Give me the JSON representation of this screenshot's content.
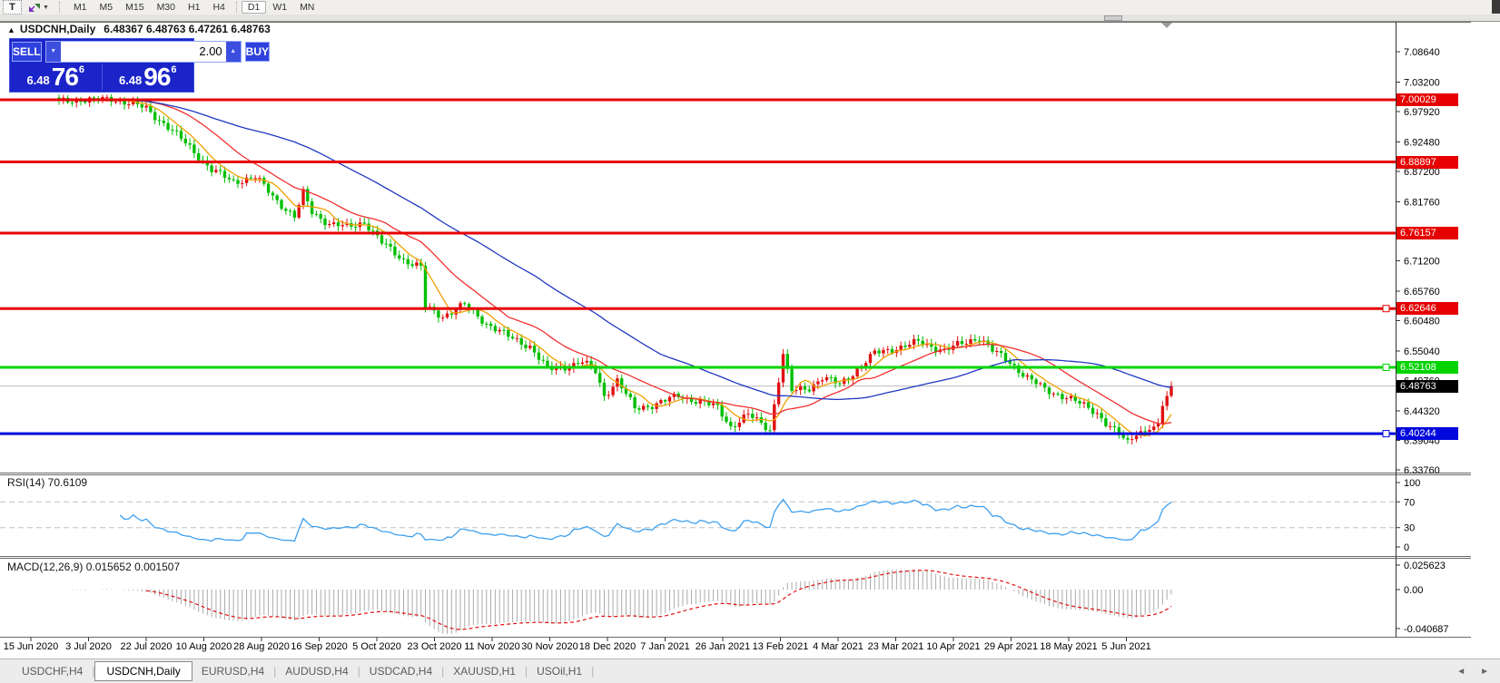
{
  "icons": {
    "collapse": "▲",
    "caret_down": "▼",
    "spin_up": "▲",
    "spin_down": "▼",
    "scroll_left": "◄",
    "scroll_right": "►"
  },
  "toolbar": {
    "text_tool_label": "T",
    "timeframes": [
      "M1",
      "M5",
      "M15",
      "M30",
      "H1",
      "H4",
      "D1",
      "W1",
      "MN"
    ],
    "active_timeframe": "D1"
  },
  "chart_header": {
    "title": "USDCNH,Daily",
    "ohlc": "6.48367 6.48763 6.47261 6.48763"
  },
  "trade_panel": {
    "sell_label": "SELL",
    "buy_label": "BUY",
    "volume": "2.00",
    "sell_price_small": "6.48",
    "sell_price_big": "76",
    "sell_price_sup": "6",
    "buy_price_small": "6.48",
    "buy_price_big": "96",
    "buy_price_sup": "6"
  },
  "indicators": {
    "rsi_label": "RSI(14) 70.6109",
    "macd_label": "MACD(12,26,9) 0.015652 0.001507"
  },
  "tabs": {
    "items": [
      {
        "label": "USDCHF,H4",
        "active": false
      },
      {
        "label": "USDCNH,Daily",
        "active": true
      },
      {
        "label": "EURUSD,H4",
        "active": false
      },
      {
        "label": "AUDUSD,H4",
        "active": false
      },
      {
        "label": "USDCAD,H4",
        "active": false
      },
      {
        "label": "XAUUSD,H1",
        "active": false
      },
      {
        "label": "USOil,H1",
        "active": false
      }
    ]
  },
  "chart_data": {
    "type": "candlestick",
    "symbol": "USDCNH",
    "timeframe": "Daily",
    "n_candles": 256,
    "price_axis": {
      "min": 6.3327,
      "max": 7.14,
      "ticks": [
        "7.08640",
        "7.03200",
        "6.97920",
        "6.92480",
        "6.87200",
        "6.81760",
        "6.76320",
        "6.71200",
        "6.65760",
        "6.60480",
        "6.55040",
        "6.49760",
        "6.44320",
        "6.39040",
        "6.33760"
      ]
    },
    "hlines": [
      {
        "price": 7.00029,
        "label": "7.00029",
        "color": "#e60000",
        "handle": false
      },
      {
        "price": 6.88897,
        "label": "6.88897",
        "color": "#e60000",
        "handle": false
      },
      {
        "price": 6.76157,
        "label": "6.76157",
        "color": "#e60000",
        "handle": false
      },
      {
        "price": 6.62646,
        "label": "6.62646",
        "color": "#e60000",
        "handle": true
      },
      {
        "price": 6.52108,
        "label": "6.52108",
        "color": "#00d400",
        "handle": true
      },
      {
        "price": 6.40244,
        "label": "6.40244",
        "color": "#0008dd",
        "handle": true
      }
    ],
    "current_price": {
      "value": 6.48763,
      "label": "6.48763",
      "line_color": "#bdbdbd",
      "box_color": "#000000"
    },
    "close_anchors": [
      [
        0,
        6.997
      ],
      [
        4,
        7.001
      ],
      [
        8,
        6.999
      ],
      [
        12,
        7.003
      ],
      [
        16,
        6.994
      ],
      [
        20,
        6.985
      ],
      [
        25,
        6.951
      ],
      [
        30,
        6.916
      ],
      [
        35,
        6.874
      ],
      [
        40,
        6.854
      ],
      [
        45,
        6.862
      ],
      [
        50,
        6.82
      ],
      [
        54,
        6.79
      ],
      [
        56,
        6.833
      ],
      [
        58,
        6.8
      ],
      [
        62,
        6.778
      ],
      [
        66,
        6.772
      ],
      [
        70,
        6.782
      ],
      [
        74,
        6.744
      ],
      [
        79,
        6.714
      ],
      [
        83,
        6.7
      ],
      [
        84,
        6.628
      ],
      [
        88,
        6.613
      ],
      [
        93,
        6.633
      ],
      [
        98,
        6.6
      ],
      [
        103,
        6.576
      ],
      [
        108,
        6.559
      ],
      [
        112,
        6.517
      ],
      [
        116,
        6.522
      ],
      [
        120,
        6.531
      ],
      [
        123,
        6.514
      ],
      [
        125,
        6.47
      ],
      [
        128,
        6.498
      ],
      [
        132,
        6.447
      ],
      [
        137,
        6.456
      ],
      [
        142,
        6.47
      ],
      [
        147,
        6.46
      ],
      [
        151,
        6.449
      ],
      [
        154,
        6.415
      ],
      [
        158,
        6.436
      ],
      [
        163,
        6.41
      ],
      [
        166,
        6.545
      ],
      [
        168,
        6.478
      ],
      [
        172,
        6.485
      ],
      [
        175,
        6.503
      ],
      [
        179,
        6.49
      ],
      [
        183,
        6.518
      ],
      [
        187,
        6.546
      ],
      [
        192,
        6.556
      ],
      [
        197,
        6.566
      ],
      [
        203,
        6.552
      ],
      [
        208,
        6.566
      ],
      [
        211,
        6.576
      ],
      [
        214,
        6.551
      ],
      [
        218,
        6.53
      ],
      [
        222,
        6.503
      ],
      [
        226,
        6.481
      ],
      [
        231,
        6.468
      ],
      [
        235,
        6.452
      ],
      [
        238,
        6.44
      ],
      [
        240,
        6.422
      ],
      [
        243,
        6.4
      ],
      [
        245,
        6.386
      ],
      [
        247,
        6.405
      ],
      [
        250,
        6.409
      ],
      [
        252,
        6.421
      ],
      [
        253,
        6.452
      ],
      [
        254,
        6.47
      ],
      [
        255,
        6.48763
      ]
    ],
    "candle_colors": {
      "up": "#e01010",
      "down": "#00bf00"
    },
    "ma_lines": [
      {
        "name": "ma-fast",
        "period": 7,
        "color": "#f0a000"
      },
      {
        "name": "ma-mid",
        "period": 20,
        "color": "#f03030"
      },
      {
        "name": "ma-slow",
        "period": 55,
        "color": "#2038c0"
      }
    ],
    "x_axis": {
      "labels": [
        "15 Jun 2020",
        "3 Jul 2020",
        "22 Jul 2020",
        "10 Aug 2020",
        "28 Aug 2020",
        "16 Sep 2020",
        "5 Oct 2020",
        "23 Oct 2020",
        "11 Nov 2020",
        "30 Nov 2020",
        "18 Dec 2020",
        "7 Jan 2021",
        "26 Jan 2021",
        "13 Feb 2021",
        "4 Mar 2021",
        "23 Mar 2021",
        "10 Apr 2021",
        "29 Apr 2021",
        "18 May 2021",
        "5 Jun 2021"
      ]
    },
    "rsi": {
      "period": 14,
      "current": 70.6109,
      "color": "#3da0f0",
      "ticks": [
        {
          "v": 100,
          "label": "100"
        },
        {
          "v": 70,
          "label": "70"
        },
        {
          "v": 30,
          "label": "30"
        },
        {
          "v": 0,
          "label": "0"
        }
      ],
      "levels": [
        70,
        30
      ]
    },
    "macd": {
      "fast": 12,
      "slow": 26,
      "signal": 9,
      "macd_current": 0.015652,
      "signal_current": 0.001507,
      "hist_color": "#ababab",
      "signal_color": "#e01010",
      "ticks": [
        {
          "v": 0.025623,
          "label": "0.025623"
        },
        {
          "v": 0,
          "label": "0.00"
        },
        {
          "v": -0.040687,
          "label": "-0.040687"
        }
      ]
    }
  }
}
